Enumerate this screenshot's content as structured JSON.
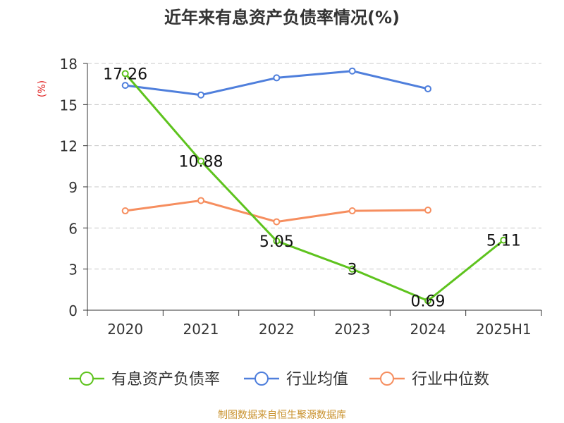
{
  "footer": "制图数据来自恒生聚源数据库",
  "chart_data": {
    "type": "line",
    "title": "近年来有息资产负债率情况(%)",
    "ylabel": "(%)",
    "xlabel": "",
    "ylim": [
      0,
      18
    ],
    "yticks": [
      0,
      3,
      6,
      9,
      12,
      15,
      18
    ],
    "grid": true,
    "legend_position": "bottom",
    "categories": [
      "2020",
      "2021",
      "2022",
      "2023",
      "2024",
      "2025H1"
    ],
    "series": [
      {
        "name": "有息资产负债率",
        "color": "#5ec31e",
        "values": [
          17.26,
          10.88,
          5.05,
          3,
          0.69,
          5.11
        ],
        "labels": [
          "17.26",
          "10.88",
          "5.05",
          "3",
          "0.69",
          "5.11"
        ],
        "show_labels": true
      },
      {
        "name": "行业均值",
        "color": "#4f7fdc",
        "values": [
          16.4,
          15.7,
          16.95,
          17.45,
          16.15,
          null
        ],
        "show_labels": false
      },
      {
        "name": "行业中位数",
        "color": "#f68e5f",
        "values": [
          7.25,
          8.0,
          6.45,
          7.25,
          7.3,
          null
        ],
        "show_labels": false
      }
    ]
  }
}
